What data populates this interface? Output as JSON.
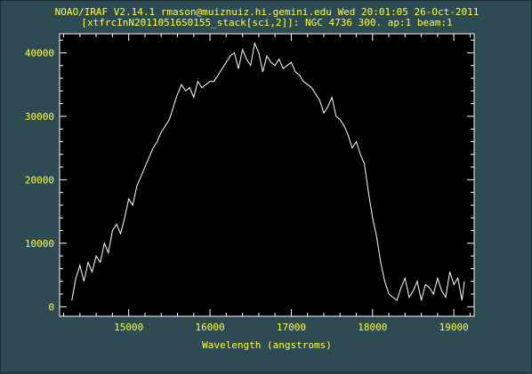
{
  "window": {
    "background_color": "#2e4a52",
    "text_color": "#ffff33",
    "plot_background_color": "#000000",
    "data_line_color": "#ffffff"
  },
  "header": {
    "line1": "NOAO/IRAF V2.14.1 rmason@muiznuiz.hi.gemini.edu Wed 20:01:05 26-Oct-2011",
    "line2": "[xtfrcInN20110516S0155_stack[sci,2]]: NGC 4736 300. ap:1 beam:1"
  },
  "chart_data": {
    "type": "line",
    "title": "NOAO/IRAF V2.14.1 rmason@muiznuiz.hi.gemini.edu Wed 20:01:05 26-Oct-2011",
    "subtitle": "[xtfrcInN20110516S0155_stack[sci,2]]: NGC 4736 300. ap:1 beam:1",
    "xlabel": "Wavelength (angstroms)",
    "ylabel": "",
    "xlim": [
      14150,
      19250
    ],
    "ylim": [
      -1500,
      43000
    ],
    "x_ticks": [
      15000,
      16000,
      17000,
      18000,
      19000
    ],
    "y_ticks": [
      0,
      10000,
      20000,
      30000,
      40000
    ],
    "x_tick_labels": [
      "15000",
      "16000",
      "17000",
      "18000",
      "19000"
    ],
    "y_tick_labels": [
      "0",
      "10000",
      "20000",
      "30000",
      "40000"
    ],
    "grid": false,
    "series": [
      {
        "x": [
          14300,
          14350,
          14400,
          14450,
          14500,
          14550,
          14600,
          14650,
          14700,
          14750,
          14800,
          14850,
          14900,
          14950,
          15000,
          15050,
          15100,
          15150,
          15200,
          15250,
          15300,
          15350,
          15400,
          15450,
          15500,
          15550,
          15600,
          15650,
          15700,
          15750,
          15800,
          15850,
          15900,
          15950,
          16000,
          16050,
          16100,
          16150,
          16200,
          16250,
          16300,
          16350,
          16400,
          16450,
          16500,
          16550,
          16600,
          16650,
          16700,
          16750,
          16800,
          16850,
          16900,
          16950,
          17000,
          17050,
          17100,
          17150,
          17200,
          17250,
          17300,
          17350,
          17400,
          17450,
          17500,
          17550,
          17600,
          17650,
          17700,
          17750,
          17800,
          17850,
          17900,
          17950,
          18000,
          18050,
          18100,
          18150,
          18200,
          18250,
          18300,
          18350,
          18400,
          18450,
          18500,
          18550,
          18600,
          18650,
          18700,
          18750,
          18800,
          18850,
          18900,
          18950,
          19000,
          19050,
          19100,
          19130
        ],
        "y": [
          1000,
          4500,
          6500,
          4000,
          7000,
          5500,
          8000,
          7000,
          10000,
          8500,
          12000,
          13000,
          11500,
          14000,
          17000,
          16000,
          19000,
          20500,
          22000,
          23500,
          25000,
          26000,
          27500,
          28500,
          29500,
          31500,
          33500,
          35000,
          34000,
          34500,
          33000,
          35500,
          34500,
          35000,
          35500,
          35500,
          36500,
          37500,
          38500,
          39500,
          40000,
          37500,
          40500,
          39000,
          38000,
          41500,
          40000,
          37000,
          39500,
          38500,
          38000,
          39000,
          37500,
          38000,
          38500,
          37000,
          36500,
          35500,
          35000,
          34500,
          33500,
          32500,
          30500,
          31500,
          33000,
          30000,
          29500,
          28500,
          27000,
          25000,
          26000,
          24000,
          22500,
          18000,
          14000,
          11000,
          7000,
          4000,
          2000,
          1500,
          1000,
          3000,
          4500,
          1500,
          2500,
          4000,
          1000,
          3500,
          3000,
          2000,
          4500,
          2500,
          1500,
          5500,
          3500,
          4500,
          1000,
          4000
        ]
      }
    ]
  }
}
